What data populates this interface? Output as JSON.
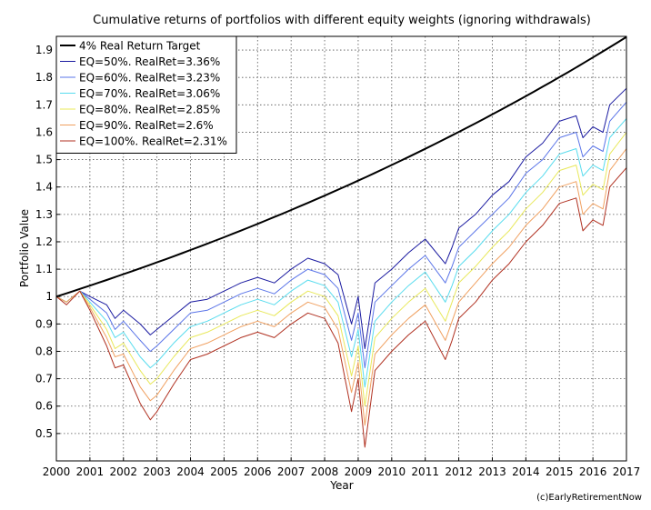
{
  "chart_data": {
    "type": "line",
    "title": "Cumulative returns of portfolios with different equity weights (ignoring withdrawals)",
    "xlabel": "Year",
    "ylabel": "Portfolio Value",
    "xlim": [
      2000,
      2017
    ],
    "ylim": [
      0.4,
      1.95
    ],
    "xticks": [
      2000,
      2001,
      2002,
      2003,
      2004,
      2005,
      2006,
      2007,
      2008,
      2009,
      2010,
      2011,
      2012,
      2013,
      2014,
      2015,
      2016,
      2017
    ],
    "yticks": [
      0.5,
      0.6,
      0.7,
      0.8,
      0.9,
      1,
      1.1,
      1.2,
      1.3,
      1.4,
      1.5,
      1.6,
      1.7,
      1.8,
      1.9
    ],
    "grid": true,
    "legend_position": "top-left",
    "credit": "(c)EarlyRetirementNow",
    "target": {
      "name": "4% Real Return Target",
      "rate": 0.04,
      "color": "#000000"
    },
    "series": [
      {
        "name": "EQ=50%. RealRet=3.36%",
        "color": "#1a1aa0",
        "x": [
          2000,
          2000.3,
          2000.7,
          2001,
          2001.5,
          2001.75,
          2002,
          2002.5,
          2002.8,
          2003,
          2003.5,
          2004,
          2004.5,
          2005,
          2005.5,
          2006,
          2006.5,
          2007,
          2007.5,
          2008,
          2008.4,
          2008.8,
          2009,
          2009.2,
          2009.5,
          2010,
          2010.5,
          2011,
          2011.6,
          2011.8,
          2012,
          2012.5,
          2013,
          2013.5,
          2014,
          2014.5,
          2015,
          2015.5,
          2015.7,
          2016,
          2016.3,
          2016.5,
          2017
        ],
        "y": [
          1.0,
          0.98,
          1.02,
          1.0,
          0.97,
          0.92,
          0.95,
          0.9,
          0.86,
          0.88,
          0.93,
          0.98,
          0.99,
          1.02,
          1.05,
          1.07,
          1.05,
          1.1,
          1.14,
          1.12,
          1.08,
          0.9,
          1.0,
          0.81,
          1.05,
          1.1,
          1.16,
          1.21,
          1.12,
          1.18,
          1.25,
          1.3,
          1.37,
          1.42,
          1.51,
          1.56,
          1.64,
          1.66,
          1.58,
          1.62,
          1.6,
          1.7,
          1.76
        ]
      },
      {
        "name": "EQ=60%. RealRet=3.23%",
        "color": "#5a74e8",
        "x": [
          2000,
          2000.3,
          2000.7,
          2001,
          2001.5,
          2001.75,
          2002,
          2002.5,
          2002.8,
          2003,
          2003.5,
          2004,
          2004.5,
          2005,
          2005.5,
          2006,
          2006.5,
          2007,
          2007.5,
          2008,
          2008.4,
          2008.8,
          2009,
          2009.2,
          2009.5,
          2010,
          2010.5,
          2011,
          2011.6,
          2011.8,
          2012,
          2012.5,
          2013,
          2013.5,
          2014,
          2014.5,
          2015,
          2015.5,
          2015.7,
          2016,
          2016.3,
          2016.5,
          2017
        ],
        "y": [
          1.0,
          0.98,
          1.02,
          0.99,
          0.94,
          0.88,
          0.91,
          0.84,
          0.8,
          0.82,
          0.88,
          0.94,
          0.95,
          0.98,
          1.01,
          1.03,
          1.01,
          1.06,
          1.1,
          1.08,
          1.03,
          0.84,
          0.94,
          0.74,
          0.98,
          1.04,
          1.1,
          1.15,
          1.05,
          1.11,
          1.18,
          1.24,
          1.3,
          1.36,
          1.45,
          1.5,
          1.58,
          1.6,
          1.51,
          1.55,
          1.53,
          1.64,
          1.71
        ]
      },
      {
        "name": "EQ=70%. RealRet=3.06%",
        "color": "#58dcee",
        "x": [
          2000,
          2000.3,
          2000.7,
          2001,
          2001.5,
          2001.75,
          2002,
          2002.5,
          2002.8,
          2003,
          2003.5,
          2004,
          2004.5,
          2005,
          2005.5,
          2006,
          2006.5,
          2007,
          2007.5,
          2008,
          2008.4,
          2008.8,
          2009,
          2009.2,
          2009.5,
          2010,
          2010.5,
          2011,
          2011.6,
          2011.8,
          2012,
          2012.5,
          2013,
          2013.5,
          2014,
          2014.5,
          2015,
          2015.5,
          2015.7,
          2016,
          2016.3,
          2016.5,
          2017
        ],
        "y": [
          1.0,
          0.98,
          1.02,
          0.98,
          0.91,
          0.85,
          0.87,
          0.78,
          0.74,
          0.76,
          0.83,
          0.89,
          0.91,
          0.94,
          0.97,
          0.99,
          0.97,
          1.02,
          1.06,
          1.04,
          0.98,
          0.78,
          0.88,
          0.67,
          0.91,
          0.98,
          1.04,
          1.09,
          0.98,
          1.04,
          1.11,
          1.17,
          1.24,
          1.3,
          1.38,
          1.44,
          1.52,
          1.54,
          1.44,
          1.48,
          1.46,
          1.58,
          1.65
        ]
      },
      {
        "name": "EQ=80%. RealRet=2.85%",
        "color": "#e8e85a",
        "x": [
          2000,
          2000.3,
          2000.7,
          2001,
          2001.5,
          2001.75,
          2002,
          2002.5,
          2002.8,
          2003,
          2003.5,
          2004,
          2004.5,
          2005,
          2005.5,
          2006,
          2006.5,
          2007,
          2007.5,
          2008,
          2008.4,
          2008.8,
          2009,
          2009.2,
          2009.5,
          2010,
          2010.5,
          2011,
          2011.6,
          2011.8,
          2012,
          2012.5,
          2013,
          2013.5,
          2014,
          2014.5,
          2015,
          2015.5,
          2015.7,
          2016,
          2016.3,
          2016.5,
          2017
        ],
        "y": [
          1.0,
          0.98,
          1.02,
          0.97,
          0.88,
          0.81,
          0.83,
          0.73,
          0.68,
          0.7,
          0.78,
          0.85,
          0.87,
          0.9,
          0.93,
          0.95,
          0.93,
          0.98,
          1.02,
          1.0,
          0.93,
          0.71,
          0.82,
          0.6,
          0.85,
          0.92,
          0.98,
          1.03,
          0.91,
          0.98,
          1.05,
          1.11,
          1.18,
          1.24,
          1.32,
          1.38,
          1.46,
          1.48,
          1.37,
          1.41,
          1.39,
          1.52,
          1.6
        ]
      },
      {
        "name": "EQ=90%. RealRet=2.6%",
        "color": "#f0a060",
        "x": [
          2000,
          2000.3,
          2000.7,
          2001,
          2001.5,
          2001.75,
          2002,
          2002.5,
          2002.8,
          2003,
          2003.5,
          2004,
          2004.5,
          2005,
          2005.5,
          2006,
          2006.5,
          2007,
          2007.5,
          2008,
          2008.4,
          2008.8,
          2009,
          2009.2,
          2009.5,
          2010,
          2010.5,
          2011,
          2011.6,
          2011.8,
          2012,
          2012.5,
          2013,
          2013.5,
          2014,
          2014.5,
          2015,
          2015.5,
          2015.7,
          2016,
          2016.3,
          2016.5,
          2017
        ],
        "y": [
          1.0,
          0.98,
          1.02,
          0.96,
          0.85,
          0.78,
          0.79,
          0.67,
          0.62,
          0.64,
          0.73,
          0.81,
          0.83,
          0.86,
          0.89,
          0.91,
          0.89,
          0.94,
          0.98,
          0.96,
          0.88,
          0.65,
          0.76,
          0.53,
          0.79,
          0.86,
          0.92,
          0.97,
          0.84,
          0.91,
          0.98,
          1.05,
          1.12,
          1.18,
          1.26,
          1.32,
          1.4,
          1.42,
          1.3,
          1.34,
          1.32,
          1.46,
          1.54
        ]
      },
      {
        "name": "EQ=100%. RealRet=2.31%",
        "color": "#b03020",
        "x": [
          2000,
          2000.3,
          2000.7,
          2001,
          2001.5,
          2001.75,
          2002,
          2002.5,
          2002.8,
          2003,
          2003.5,
          2004,
          2004.5,
          2005,
          2005.5,
          2006,
          2006.5,
          2007,
          2007.5,
          2008,
          2008.4,
          2008.8,
          2009,
          2009.2,
          2009.5,
          2010,
          2010.5,
          2011,
          2011.6,
          2011.8,
          2012,
          2012.5,
          2013,
          2013.5,
          2014,
          2014.5,
          2015,
          2015.5,
          2015.7,
          2016,
          2016.3,
          2016.5,
          2017
        ],
        "y": [
          1.0,
          0.97,
          1.02,
          0.95,
          0.82,
          0.74,
          0.75,
          0.61,
          0.55,
          0.58,
          0.68,
          0.77,
          0.79,
          0.82,
          0.85,
          0.87,
          0.85,
          0.9,
          0.94,
          0.92,
          0.83,
          0.58,
          0.7,
          0.45,
          0.73,
          0.8,
          0.86,
          0.91,
          0.77,
          0.84,
          0.92,
          0.98,
          1.06,
          1.12,
          1.2,
          1.26,
          1.34,
          1.36,
          1.24,
          1.28,
          1.26,
          1.4,
          1.47
        ]
      }
    ]
  }
}
